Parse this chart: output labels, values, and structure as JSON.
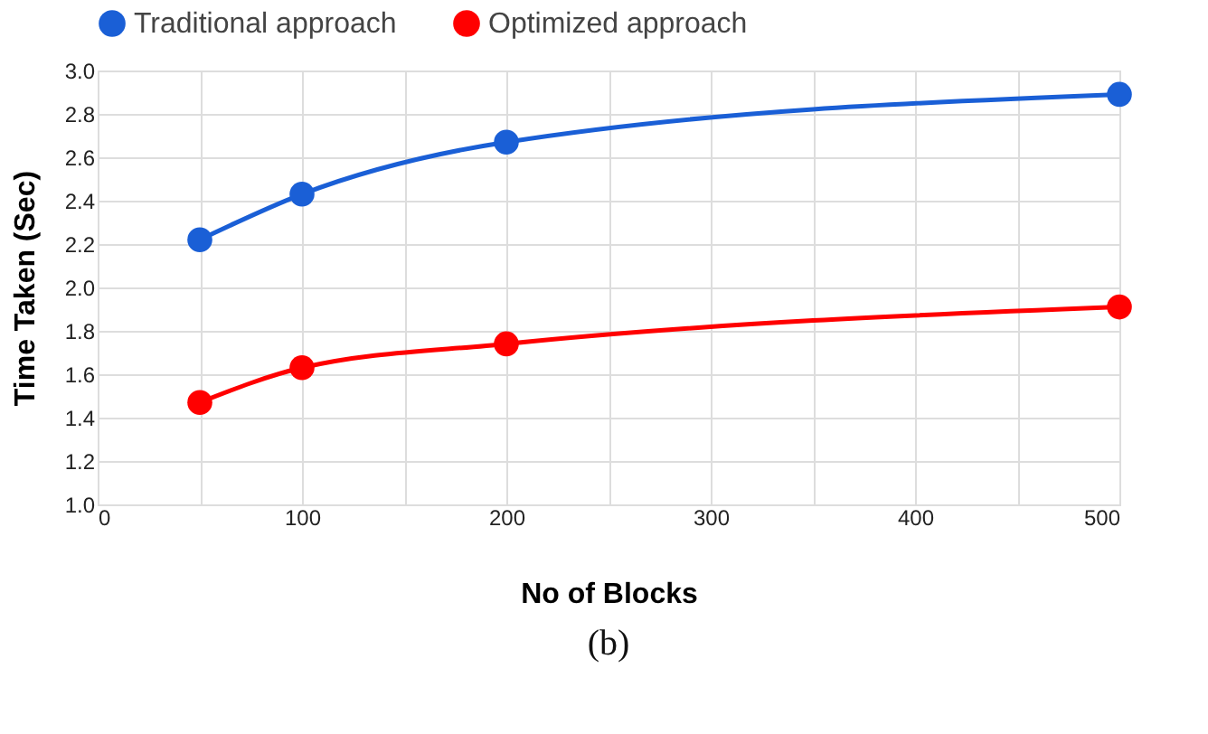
{
  "chart_data": {
    "type": "line",
    "x": [
      50,
      100,
      200,
      500
    ],
    "series": [
      {
        "name": "Traditional approach",
        "color": "#1a5fd6",
        "values": [
          2.22,
          2.43,
          2.67,
          2.89
        ]
      },
      {
        "name": "Optimized approach",
        "color": "#ff0000",
        "values": [
          1.47,
          1.63,
          1.74,
          1.91
        ]
      }
    ],
    "xlabel": "No of Blocks",
    "ylabel": "Time Taken (Sec)",
    "xlim": [
      0,
      500
    ],
    "xticks": [
      0,
      {
        "value": 50,
        "label": null
      },
      100,
      {
        "value": 150,
        "label": null
      },
      200,
      {
        "value": 250,
        "label": null
      },
      300,
      {
        "value": 350,
        "label": null
      },
      400,
      {
        "value": 450,
        "label": null
      },
      500
    ],
    "ylim": [
      1.0,
      3.0
    ],
    "yticks": [
      {
        "value": 1.0,
        "label": "1.0"
      },
      {
        "value": 1.2,
        "label": "1.2"
      },
      {
        "value": 1.4,
        "label": "1.4"
      },
      {
        "value": 1.6,
        "label": "1.6"
      },
      {
        "value": 1.8,
        "label": "1.8"
      },
      {
        "value": 2.0,
        "label": "2.0"
      },
      {
        "value": 2.2,
        "label": "2.2"
      },
      {
        "value": 2.4,
        "label": "2.4"
      },
      {
        "value": 2.6,
        "label": "2.6"
      },
      {
        "value": 2.8,
        "label": "2.8"
      },
      {
        "value": 3.0,
        "label": "3.0"
      }
    ],
    "grid": true,
    "legend": "top",
    "marker": "circle",
    "line_style": "solid",
    "annotations": [
      "(b)"
    ]
  }
}
